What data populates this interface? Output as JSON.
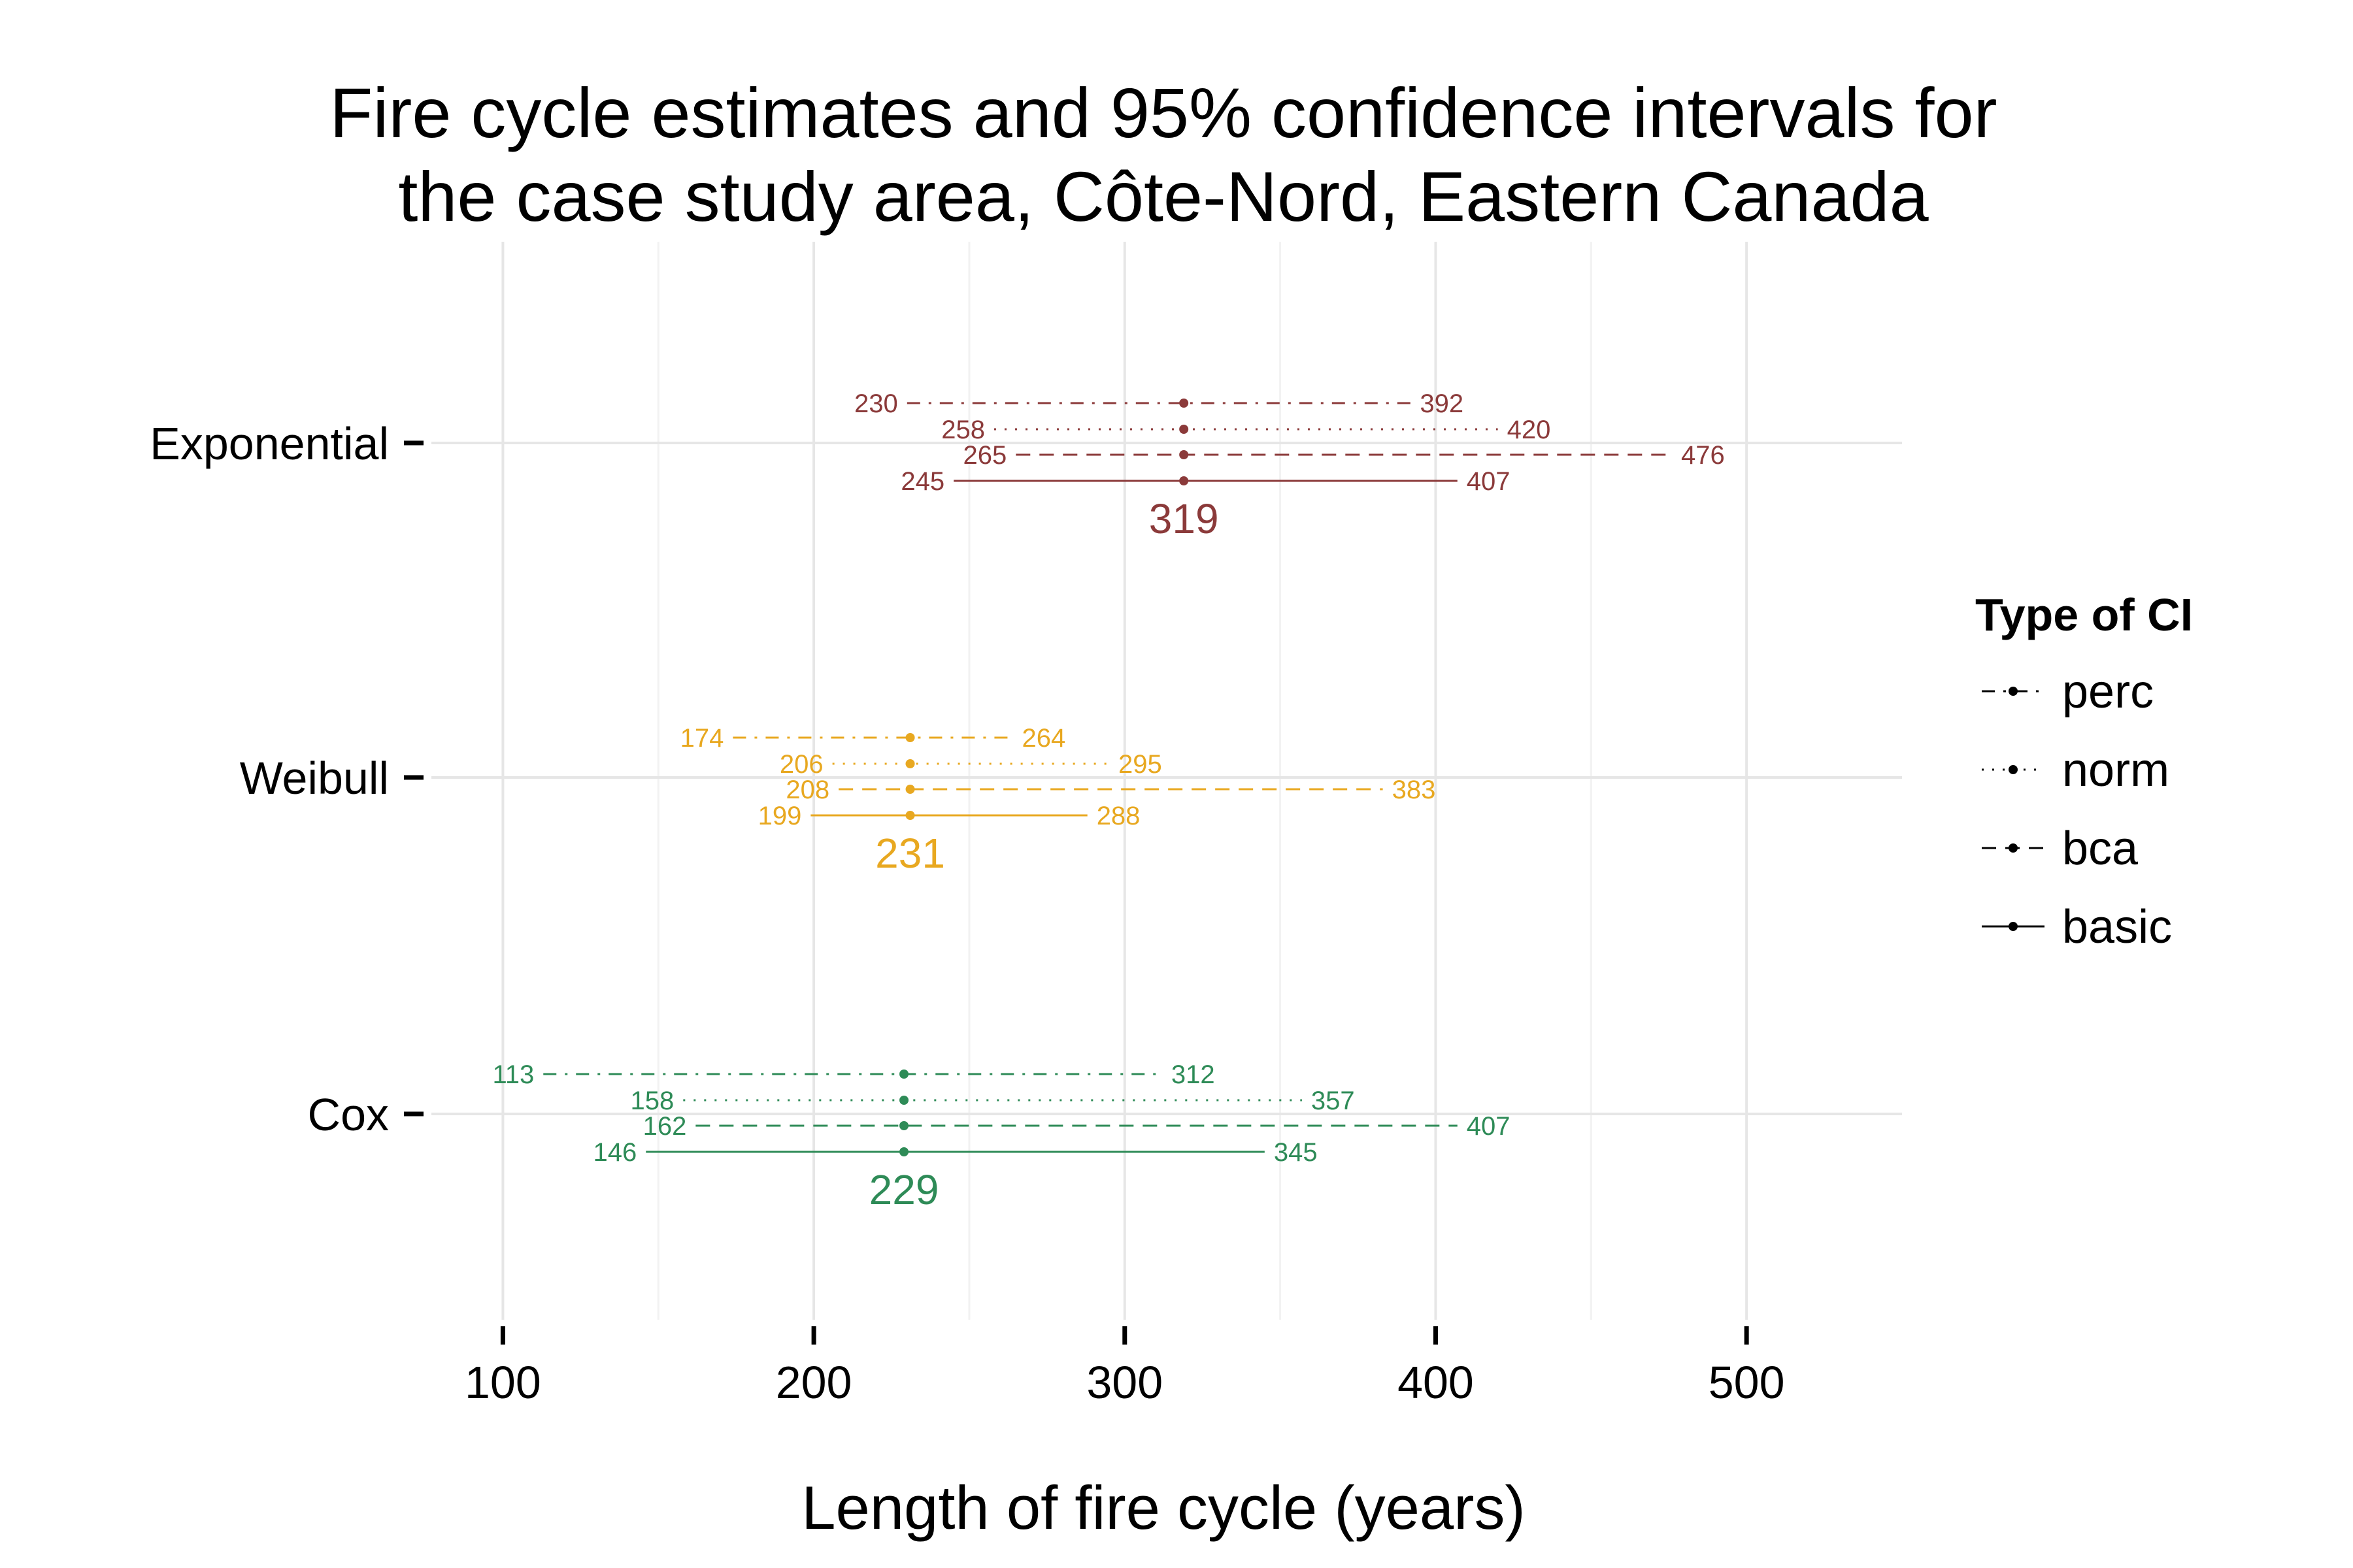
{
  "chart_data": {
    "type": "errorbar",
    "title_lines": [
      "Fire cycle estimates and 95% confidence intervals for",
      "the case study area, Côte-Nord, Eastern Canada"
    ],
    "xlabel": "Length of fire cycle (years)",
    "ylabel": "",
    "xlim": [
      77,
      550
    ],
    "x_ticks": [
      100,
      200,
      300,
      400,
      500
    ],
    "x_tick_labels": [
      "100",
      "200",
      "300",
      "400",
      "500"
    ],
    "categories": [
      "Exponential",
      "Weibull",
      "Cox"
    ],
    "grid": true,
    "legend": {
      "title": "Type of CI",
      "position": "right",
      "entries": [
        {
          "key": "perc",
          "label": "perc",
          "line_style": "dashdot"
        },
        {
          "key": "norm",
          "label": "norm",
          "line_style": "dotted"
        },
        {
          "key": "bca",
          "label": "bca",
          "line_style": "dashed"
        },
        {
          "key": "basic",
          "label": "basic",
          "line_style": "solid"
        }
      ]
    },
    "series": [
      {
        "model": "Exponential",
        "color": "#8B3A3A",
        "estimate": 319,
        "estimate_label": "319",
        "intervals": [
          {
            "type": "perc",
            "lower": 230,
            "upper": 392,
            "lower_label": "230",
            "upper_label": "392"
          },
          {
            "type": "norm",
            "lower": 258,
            "upper": 420,
            "lower_label": "258",
            "upper_label": "420"
          },
          {
            "type": "bca",
            "lower": 265,
            "upper": 476,
            "lower_label": "265",
            "upper_label": "476"
          },
          {
            "type": "basic",
            "lower": 245,
            "upper": 407,
            "lower_label": "245",
            "upper_label": "407"
          }
        ]
      },
      {
        "model": "Weibull",
        "color": "#E8A820",
        "estimate": 231,
        "estimate_label": "231",
        "intervals": [
          {
            "type": "perc",
            "lower": 174,
            "upper": 264,
            "lower_label": "174",
            "upper_label": "264"
          },
          {
            "type": "norm",
            "lower": 206,
            "upper": 295,
            "lower_label": "206",
            "upper_label": "295"
          },
          {
            "type": "bca",
            "lower": 208,
            "upper": 383,
            "lower_label": "208",
            "upper_label": "383"
          },
          {
            "type": "basic",
            "lower": 199,
            "upper": 288,
            "lower_label": "199",
            "upper_label": "288"
          }
        ]
      },
      {
        "model": "Cox",
        "color": "#2E8B57",
        "estimate": 229,
        "estimate_label": "229",
        "intervals": [
          {
            "type": "perc",
            "lower": 113,
            "upper": 312,
            "lower_label": "113",
            "upper_label": "312"
          },
          {
            "type": "norm",
            "lower": 158,
            "upper": 357,
            "lower_label": "158",
            "upper_label": "357"
          },
          {
            "type": "bca",
            "lower": 162,
            "upper": 407,
            "lower_label": "162",
            "upper_label": "407"
          },
          {
            "type": "basic",
            "lower": 146,
            "upper": 345,
            "lower_label": "146",
            "upper_label": "345"
          }
        ]
      }
    ]
  }
}
